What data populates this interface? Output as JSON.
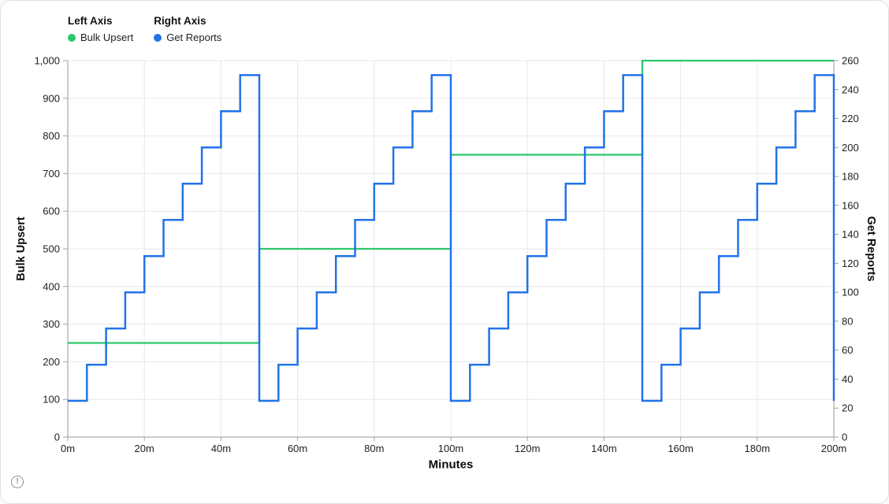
{
  "card": {
    "background": "#ffffff",
    "border_color": "#e0e0e0"
  },
  "legend": {
    "left": {
      "header": "Left Axis",
      "item": "Bulk Upsert",
      "color": "#2bc76a"
    },
    "right": {
      "header": "Right Axis",
      "item": "Get Reports",
      "color": "#2173e8"
    }
  },
  "footer": {
    "info_glyph": "!"
  },
  "chart_data": {
    "type": "line",
    "step": true,
    "title": "",
    "xlabel": "Minutes",
    "xlim": [
      0,
      200
    ],
    "x_ticks": {
      "values": [
        0,
        20,
        40,
        60,
        80,
        100,
        120,
        140,
        160,
        180,
        200
      ],
      "labels": [
        "0m",
        "20m",
        "40m",
        "60m",
        "80m",
        "100m",
        "120m",
        "140m",
        "160m",
        "180m",
        "200m"
      ]
    },
    "left_axis": {
      "label": "Bulk Upsert",
      "lim": [
        0,
        1000
      ],
      "tick_values": [
        0,
        100,
        200,
        300,
        400,
        500,
        600,
        700,
        800,
        900,
        1000
      ],
      "tick_labels": [
        "0",
        "100",
        "200",
        "300",
        "400",
        "500",
        "600",
        "700",
        "800",
        "900",
        "1,000"
      ]
    },
    "right_axis": {
      "label": "Get Reports",
      "lim": [
        0,
        260
      ],
      "tick_values": [
        0,
        20,
        40,
        60,
        80,
        100,
        120,
        140,
        160,
        180,
        200,
        220,
        240,
        260
      ],
      "tick_labels": [
        "0",
        "20",
        "40",
        "60",
        "80",
        "100",
        "120",
        "140",
        "160",
        "180",
        "200",
        "220",
        "240",
        "260"
      ]
    },
    "grid": {
      "horizontal": true,
      "vertical": true,
      "color": "#e8e8e8"
    },
    "axis_line_color": "#949494",
    "tick_color": "#a6a6a6",
    "text_color": "#202124",
    "legend_position": "top-left",
    "series": [
      {
        "name": "Bulk Upsert",
        "axis": "left",
        "color": "#2bc76a",
        "width": 2.2,
        "points": [
          [
            0,
            250
          ],
          [
            50,
            250
          ],
          [
            50,
            500
          ],
          [
            100,
            500
          ],
          [
            100,
            750
          ],
          [
            150,
            750
          ],
          [
            150,
            1000
          ],
          [
            200,
            1000
          ]
        ]
      },
      {
        "name": "Get Reports",
        "axis": "right",
        "color": "#2173e8",
        "width": 2.5,
        "points": [
          [
            0,
            25
          ],
          [
            5,
            25
          ],
          [
            5,
            50
          ],
          [
            10,
            50
          ],
          [
            10,
            75
          ],
          [
            15,
            75
          ],
          [
            15,
            100
          ],
          [
            20,
            100
          ],
          [
            20,
            125
          ],
          [
            25,
            125
          ],
          [
            25,
            150
          ],
          [
            30,
            150
          ],
          [
            30,
            175
          ],
          [
            35,
            175
          ],
          [
            35,
            200
          ],
          [
            40,
            200
          ],
          [
            40,
            225
          ],
          [
            45,
            225
          ],
          [
            45,
            250
          ],
          [
            50,
            250
          ],
          [
            50,
            25
          ],
          [
            55,
            25
          ],
          [
            55,
            50
          ],
          [
            60,
            50
          ],
          [
            60,
            75
          ],
          [
            65,
            75
          ],
          [
            65,
            100
          ],
          [
            70,
            100
          ],
          [
            70,
            125
          ],
          [
            75,
            125
          ],
          [
            75,
            150
          ],
          [
            80,
            150
          ],
          [
            80,
            175
          ],
          [
            85,
            175
          ],
          [
            85,
            200
          ],
          [
            90,
            200
          ],
          [
            90,
            225
          ],
          [
            95,
            225
          ],
          [
            95,
            250
          ],
          [
            100,
            250
          ],
          [
            100,
            25
          ],
          [
            105,
            25
          ],
          [
            105,
            50
          ],
          [
            110,
            50
          ],
          [
            110,
            75
          ],
          [
            115,
            75
          ],
          [
            115,
            100
          ],
          [
            120,
            100
          ],
          [
            120,
            125
          ],
          [
            125,
            125
          ],
          [
            125,
            150
          ],
          [
            130,
            150
          ],
          [
            130,
            175
          ],
          [
            135,
            175
          ],
          [
            135,
            200
          ],
          [
            140,
            200
          ],
          [
            140,
            225
          ],
          [
            145,
            225
          ],
          [
            145,
            250
          ],
          [
            150,
            250
          ],
          [
            150,
            25
          ],
          [
            155,
            25
          ],
          [
            155,
            50
          ],
          [
            160,
            50
          ],
          [
            160,
            75
          ],
          [
            165,
            75
          ],
          [
            165,
            100
          ],
          [
            170,
            100
          ],
          [
            170,
            125
          ],
          [
            175,
            125
          ],
          [
            175,
            150
          ],
          [
            180,
            150
          ],
          [
            180,
            175
          ],
          [
            185,
            175
          ],
          [
            185,
            200
          ],
          [
            190,
            200
          ],
          [
            190,
            225
          ],
          [
            195,
            225
          ],
          [
            195,
            250
          ],
          [
            200,
            250
          ],
          [
            200,
            25
          ]
        ]
      }
    ]
  }
}
